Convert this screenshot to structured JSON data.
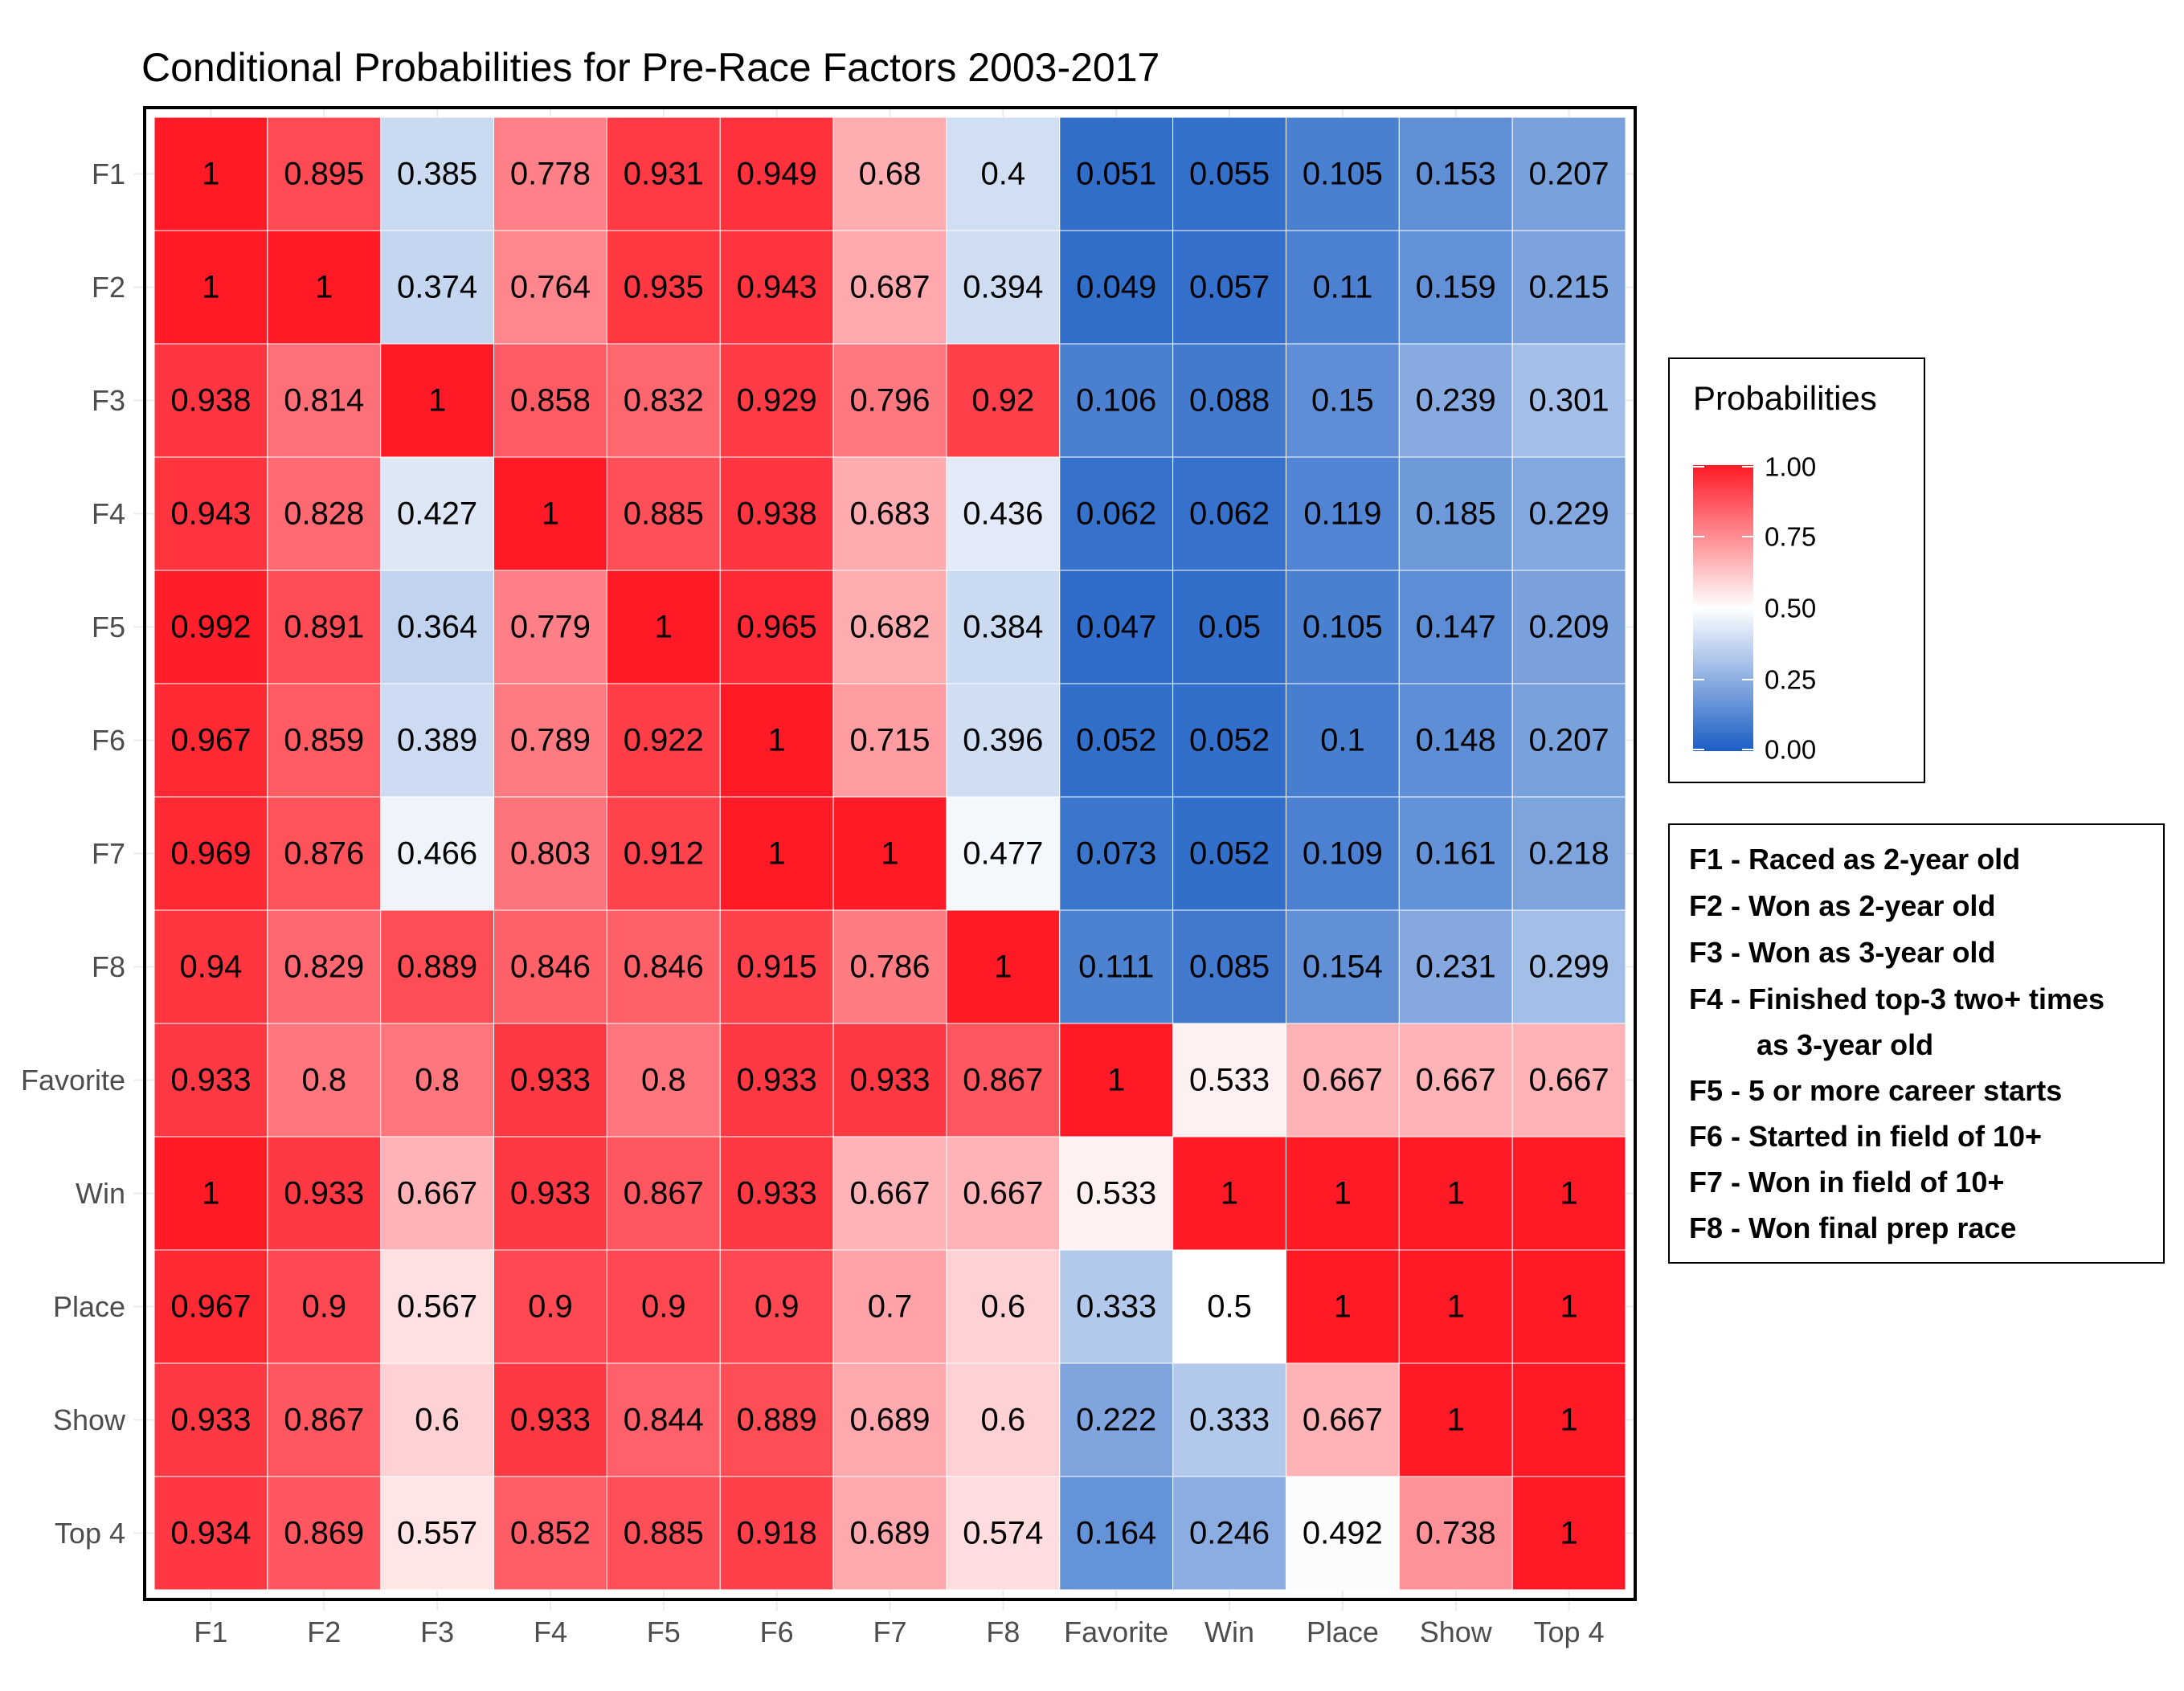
{
  "chart_data": {
    "type": "heatmap",
    "title": "Conditional Probabilities for Pre-Race Factors 2003-2017",
    "xlabel": "",
    "ylabel": "",
    "x_categories": [
      "F1",
      "F2",
      "F3",
      "F4",
      "F5",
      "F6",
      "F7",
      "F8",
      "Favorite",
      "Win",
      "Place",
      "Show",
      "Top 4"
    ],
    "y_categories": [
      "F1",
      "F2",
      "F3",
      "F4",
      "F5",
      "F6",
      "F7",
      "F8",
      "Favorite",
      "Win",
      "Place",
      "Show",
      "Top 4"
    ],
    "values": [
      [
        1,
        0.895,
        0.385,
        0.778,
        0.931,
        0.949,
        0.68,
        0.4,
        0.051,
        0.055,
        0.105,
        0.153,
        0.207
      ],
      [
        1,
        1,
        0.374,
        0.764,
        0.935,
        0.943,
        0.687,
        0.394,
        0.049,
        0.057,
        0.11,
        0.159,
        0.215
      ],
      [
        0.938,
        0.814,
        1,
        0.858,
        0.832,
        0.929,
        0.796,
        0.92,
        0.106,
        0.088,
        0.15,
        0.239,
        0.301
      ],
      [
        0.943,
        0.828,
        0.427,
        1,
        0.885,
        0.938,
        0.683,
        0.436,
        0.062,
        0.062,
        0.119,
        0.185,
        0.229
      ],
      [
        0.992,
        0.891,
        0.364,
        0.779,
        1,
        0.965,
        0.682,
        0.384,
        0.047,
        0.05,
        0.105,
        0.147,
        0.209
      ],
      [
        0.967,
        0.859,
        0.389,
        0.789,
        0.922,
        1,
        0.715,
        0.396,
        0.052,
        0.052,
        0.1,
        0.148,
        0.207
      ],
      [
        0.969,
        0.876,
        0.466,
        0.803,
        0.912,
        1,
        1,
        0.477,
        0.073,
        0.052,
        0.109,
        0.161,
        0.218
      ],
      [
        0.94,
        0.829,
        0.889,
        0.846,
        0.846,
        0.915,
        0.786,
        1,
        0.111,
        0.085,
        0.154,
        0.231,
        0.299
      ],
      [
        0.933,
        0.8,
        0.8,
        0.933,
        0.8,
        0.933,
        0.933,
        0.867,
        1,
        0.533,
        0.667,
        0.667,
        0.667
      ],
      [
        1,
        0.933,
        0.667,
        0.933,
        0.867,
        0.933,
        0.667,
        0.667,
        0.533,
        1,
        1,
        1,
        1
      ],
      [
        0.967,
        0.9,
        0.567,
        0.9,
        0.9,
        0.9,
        0.7,
        0.6,
        0.333,
        0.5,
        1,
        1,
        1
      ],
      [
        0.933,
        0.867,
        0.6,
        0.933,
        0.844,
        0.889,
        0.689,
        0.6,
        0.222,
        0.333,
        0.667,
        1,
        1
      ],
      [
        0.934,
        0.869,
        0.557,
        0.852,
        0.885,
        0.918,
        0.689,
        0.574,
        0.164,
        0.246,
        0.492,
        0.738,
        1
      ]
    ],
    "color_scale": {
      "low": "#1a5ec4",
      "mid": "#ffffff",
      "high": "#ff1a26",
      "domain": [
        0,
        0.5,
        1
      ]
    },
    "legend": {
      "title": "Probabilities",
      "ticks": [
        "1.00",
        "0.75",
        "0.50",
        "0.25",
        "0.00"
      ],
      "tick_values": [
        1,
        0.75,
        0.5,
        0.25,
        0
      ]
    },
    "factor_key": [
      "F1 - Raced as 2-year old",
      "F2 - Won as 2-year old",
      "F3 - Won as 3-year old",
      "F4 - Finished top-3 two+ times",
      "as 3-year old",
      "F5 - 5 or more career starts",
      "F6 - Started in field of 10+",
      "F7 - Won in field of 10+",
      "F8 - Won final prep race"
    ],
    "grid": false
  }
}
